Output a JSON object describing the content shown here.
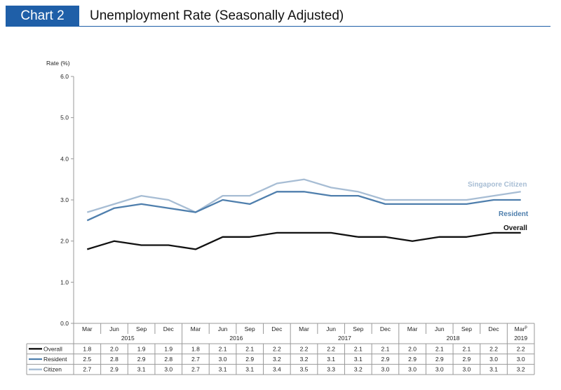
{
  "header": {
    "tag": "Chart 2",
    "title": "Unemployment Rate (Seasonally Adjusted)"
  },
  "chart_data": {
    "type": "line",
    "title": "Unemployment Rate (Seasonally Adjusted)",
    "ylabel": "Rate (%)",
    "ylim": [
      0,
      6
    ],
    "yticks": [
      "0.0",
      "1.0",
      "2.0",
      "3.0",
      "4.0",
      "5.0",
      "6.0"
    ],
    "grid": false,
    "categories": [
      "Mar",
      "Jun",
      "Sep",
      "Dec",
      "Mar",
      "Jun",
      "Sep",
      "Dec",
      "Mar",
      "Jun",
      "Sep",
      "Dec",
      "Mar",
      "Jun",
      "Sep",
      "Dec",
      "Mar"
    ],
    "last_category_marker": "p",
    "years": [
      "2015",
      "2016",
      "2017",
      "2018",
      "2019"
    ],
    "series": [
      {
        "name": "Overall",
        "color": "#111111",
        "values": [
          1.8,
          2.0,
          1.9,
          1.9,
          1.8,
          2.1,
          2.1,
          2.2,
          2.2,
          2.2,
          2.1,
          2.1,
          2.0,
          2.1,
          2.1,
          2.2,
          2.2
        ]
      },
      {
        "name": "Resident",
        "color": "#4f7fad",
        "values": [
          2.5,
          2.8,
          2.9,
          2.8,
          2.7,
          3.0,
          2.9,
          3.2,
          3.2,
          3.1,
          3.1,
          2.9,
          2.9,
          2.9,
          2.9,
          3.0,
          3.0
        ]
      },
      {
        "name": "Citizen",
        "color": "#a7bdd4",
        "values": [
          2.7,
          2.9,
          3.1,
          3.0,
          2.7,
          3.1,
          3.1,
          3.4,
          3.5,
          3.3,
          3.2,
          3.0,
          3.0,
          3.0,
          3.0,
          3.1,
          3.2
        ]
      }
    ],
    "annotations": [
      "Singapore Citizen",
      "Resident",
      "Overall"
    ]
  }
}
